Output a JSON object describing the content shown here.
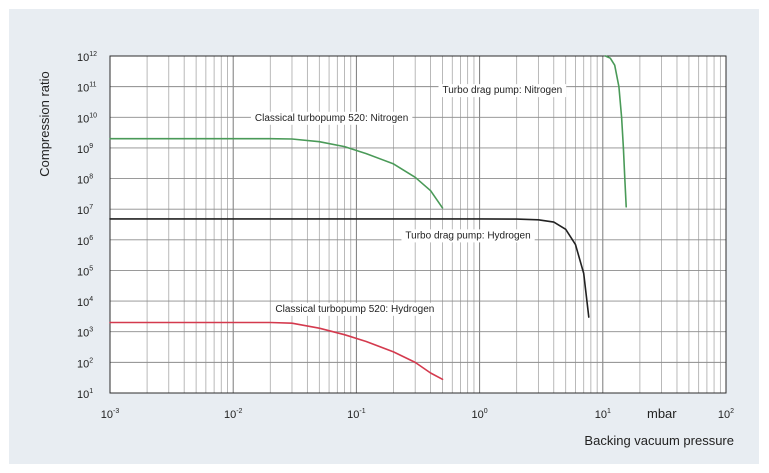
{
  "chart_data": {
    "type": "line",
    "title": "",
    "xlabel": "Backing vacuum pressure",
    "xunit": "mbar",
    "ylabel": "Compression ratio",
    "xscale": "log",
    "yscale": "log",
    "xlim": [
      0.001,
      100
    ],
    "ylim": [
      10,
      1000000000000
    ],
    "grid": true,
    "legend": "none",
    "x_tick_labels": [
      {
        "base": "10",
        "exp": "-3",
        "value": 0.001
      },
      {
        "base": "10",
        "exp": "-2",
        "value": 0.01
      },
      {
        "base": "10",
        "exp": "-1",
        "value": 0.1
      },
      {
        "base": "10",
        "exp": "0",
        "value": 1
      },
      {
        "base": "10",
        "exp": "1",
        "value": 10
      },
      {
        "base": "10",
        "exp": "2",
        "value": 100
      }
    ],
    "y_tick_labels": [
      {
        "base": "10",
        "exp": "1",
        "value": 10
      },
      {
        "base": "10",
        "exp": "2",
        "value": 100
      },
      {
        "base": "10",
        "exp": "3",
        "value": 1000
      },
      {
        "base": "10",
        "exp": "4",
        "value": 10000
      },
      {
        "base": "10",
        "exp": "5",
        "value": 100000
      },
      {
        "base": "10",
        "exp": "6",
        "value": 1000000
      },
      {
        "base": "10",
        "exp": "7",
        "value": 10000000
      },
      {
        "base": "10",
        "exp": "8",
        "value": 100000000
      },
      {
        "base": "10",
        "exp": "9",
        "value": 1000000000
      },
      {
        "base": "10",
        "exp": "10",
        "value": 10000000000
      },
      {
        "base": "10",
        "exp": "11",
        "value": 100000000000
      },
      {
        "base": "10",
        "exp": "12",
        "value": 1000000000000
      }
    ],
    "series": [
      {
        "name": "Classical turbopump 520: Nitrogen",
        "color": "#4a9a58",
        "label_at": [
          0.015,
          10000000000
        ],
        "points": [
          [
            0.001,
            2000000000
          ],
          [
            0.01,
            2000000000
          ],
          [
            0.02,
            2000000000
          ],
          [
            0.03,
            1950000000
          ],
          [
            0.05,
            1600000000
          ],
          [
            0.08,
            1100000000
          ],
          [
            0.12,
            650000000
          ],
          [
            0.2,
            300000000
          ],
          [
            0.3,
            110000000
          ],
          [
            0.4,
            40000000
          ],
          [
            0.5,
            11000000
          ]
        ]
      },
      {
        "name": "Classical turbopump 520: Hydrogen",
        "color": "#d43a4e",
        "label_at": [
          0.022,
          5800
        ],
        "points": [
          [
            0.001,
            2000
          ],
          [
            0.01,
            2000
          ],
          [
            0.02,
            2000
          ],
          [
            0.03,
            1900
          ],
          [
            0.05,
            1300
          ],
          [
            0.08,
            800
          ],
          [
            0.12,
            480
          ],
          [
            0.2,
            220
          ],
          [
            0.3,
            100
          ],
          [
            0.4,
            45
          ],
          [
            0.5,
            28
          ]
        ]
      },
      {
        "name": "Turbo drag pump: Nitrogen",
        "color": "#4a9a58",
        "label_at": [
          0.5,
          80000000000
        ],
        "points": [
          [
            10.5,
            1000000000000
          ],
          [
            11.5,
            850000000000
          ],
          [
            12.5,
            500000000000
          ],
          [
            13.5,
            100000000000
          ],
          [
            14.2,
            10000000000
          ],
          [
            14.7,
            1000000000
          ],
          [
            15.1,
            100000000
          ],
          [
            15.5,
            12000000
          ]
        ]
      },
      {
        "name": "Turbo drag pump: Hydrogen",
        "color": "#222222",
        "label_at": [
          0.25,
          1450000
        ],
        "points": [
          [
            0.001,
            4800000
          ],
          [
            0.1,
            4800000
          ],
          [
            1,
            4800000
          ],
          [
            2,
            4750000
          ],
          [
            3,
            4500000
          ],
          [
            4,
            3800000
          ],
          [
            5,
            2200000
          ],
          [
            6,
            700000
          ],
          [
            7,
            80000
          ],
          [
            7.7,
            3000
          ]
        ]
      }
    ]
  }
}
